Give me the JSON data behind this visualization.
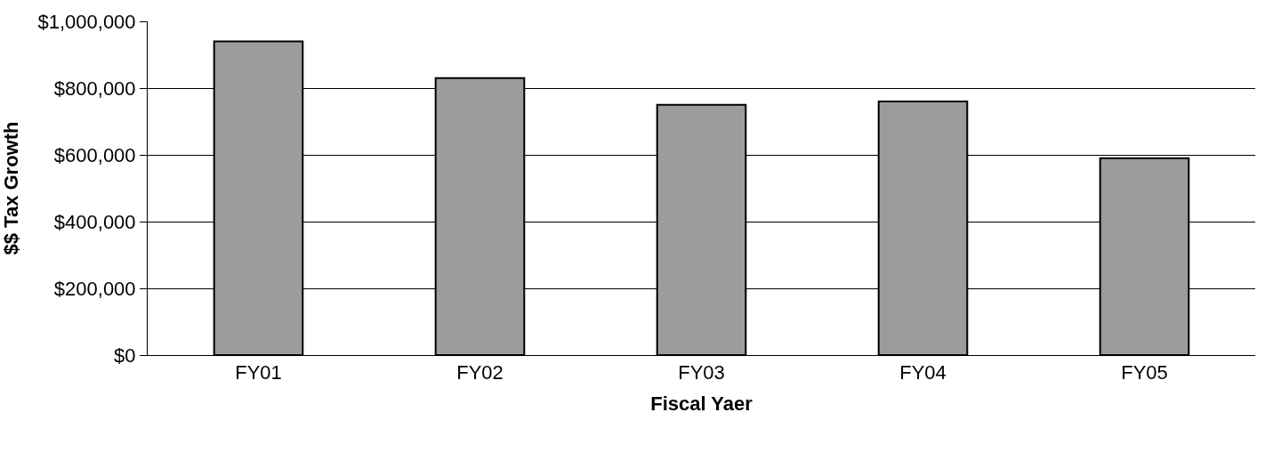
{
  "chart_data": {
    "type": "bar",
    "xlabel": "Fiscal Yaer",
    "ylabel": "$$ Tax Growth",
    "categories": [
      "FY01",
      "FY02",
      "FY03",
      "FY04",
      "FY05"
    ],
    "values": [
      940000,
      830000,
      750000,
      760000,
      590000
    ],
    "color": "#9c9c9c",
    "ylim": [
      0,
      1000000
    ],
    "yticks": [
      {
        "value": 0,
        "label": "$0"
      },
      {
        "value": 200000,
        "label": "$200,000"
      },
      {
        "value": 400000,
        "label": "$400,000"
      },
      {
        "value": 600000,
        "label": "$600,000"
      },
      {
        "value": 800000,
        "label": "$800,000"
      },
      {
        "value": 1000000,
        "label": "$1,000,000"
      }
    ],
    "grid": "y",
    "legend": false
  }
}
